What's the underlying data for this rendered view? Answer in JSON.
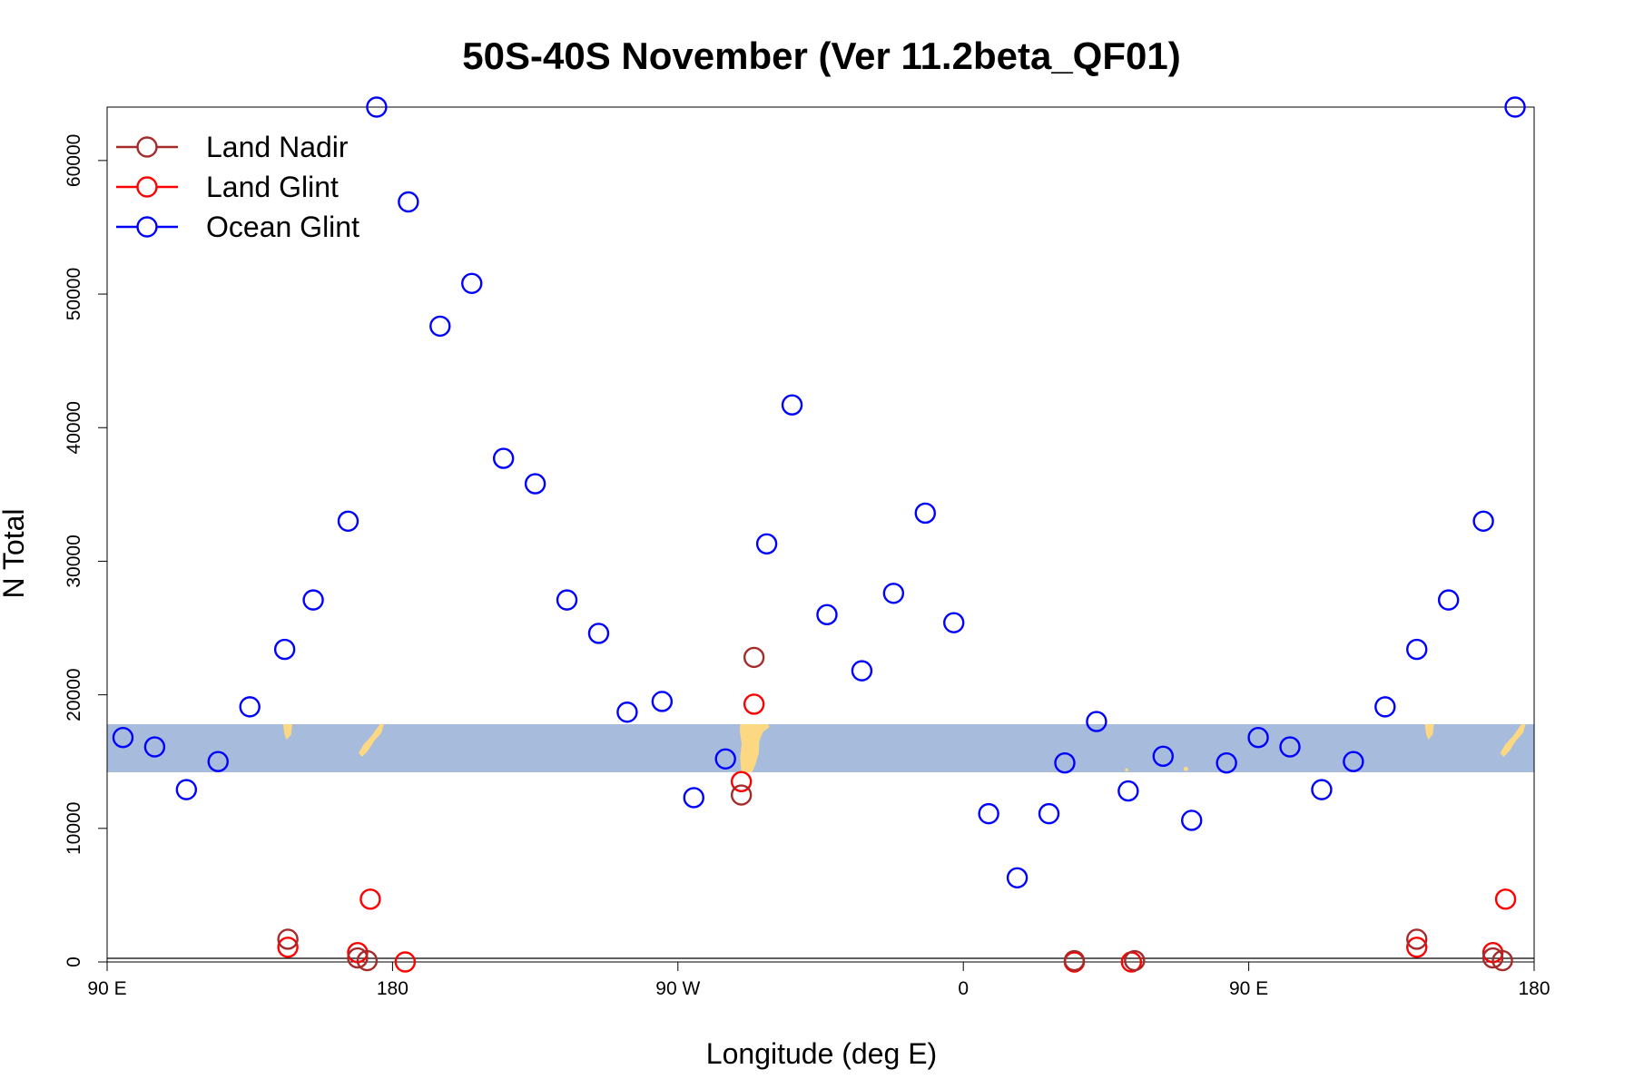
{
  "chart_data": {
    "type": "scatter",
    "title": "50S-40S November (Ver 11.2beta_QF01)",
    "xlabel": "Longitude (deg E)",
    "ylabel": "N Total",
    "xlim": [
      90,
      540
    ],
    "ylim": [
      0,
      64000
    ],
    "x_ticks": [
      {
        "value": 90,
        "label": "90 E"
      },
      {
        "value": 180,
        "label": "180"
      },
      {
        "value": 270,
        "label": "90 W"
      },
      {
        "value": 360,
        "label": "0"
      },
      {
        "value": 450,
        "label": "90 E"
      },
      {
        "value": 540,
        "label": "180"
      }
    ],
    "y_ticks": [
      {
        "value": 0,
        "label": "0"
      },
      {
        "value": 10000,
        "label": "10000"
      },
      {
        "value": 20000,
        "label": "20000"
      },
      {
        "value": 30000,
        "label": "30000"
      },
      {
        "value": 40000,
        "label": "40000"
      },
      {
        "value": 50000,
        "label": "50000"
      },
      {
        "value": 60000,
        "label": "60000"
      }
    ],
    "map_inset": {
      "ocean_color": "#a7bcdc",
      "land_color": "#fcd882",
      "y_range": [
        14200,
        17800
      ]
    },
    "legend_position": "top-left",
    "grid": false,
    "series": [
      {
        "name": "Land Nadir",
        "color": "#a52a2a",
        "points": [
          [
            147,
            1700
          ],
          [
            169,
            300
          ],
          [
            172,
            100
          ],
          [
            290,
            12500
          ],
          [
            294,
            22800
          ],
          [
            395,
            100
          ],
          [
            414,
            100
          ],
          [
            503,
            1700
          ],
          [
            527,
            300
          ],
          [
            530,
            100
          ]
        ]
      },
      {
        "name": "Land Glint",
        "color": "#ff0000",
        "points": [
          [
            147,
            1100
          ],
          [
            169,
            700
          ],
          [
            173,
            4700
          ],
          [
            184,
            0
          ],
          [
            290,
            13500
          ],
          [
            294,
            19300
          ],
          [
            395,
            0
          ],
          [
            413,
            0
          ],
          [
            503,
            1100
          ],
          [
            527,
            700
          ],
          [
            531,
            4700
          ]
        ]
      },
      {
        "name": "Ocean Glint",
        "color": "#0000ff",
        "points": [
          [
            95,
            16800
          ],
          [
            105,
            16100
          ],
          [
            115,
            12900
          ],
          [
            125,
            15000
          ],
          [
            135,
            19100
          ],
          [
            146,
            23400
          ],
          [
            155,
            27100
          ],
          [
            166,
            33000
          ],
          [
            175,
            64000
          ],
          [
            185,
            56900
          ],
          [
            195,
            47600
          ],
          [
            205,
            50800
          ],
          [
            215,
            37700
          ],
          [
            225,
            35800
          ],
          [
            235,
            27100
          ],
          [
            245,
            24600
          ],
          [
            254,
            18700
          ],
          [
            265,
            19500
          ],
          [
            275,
            12300
          ],
          [
            285,
            15200
          ],
          [
            298,
            31300
          ],
          [
            306,
            41700
          ],
          [
            317,
            26000
          ],
          [
            328,
            21800
          ],
          [
            338,
            27600
          ],
          [
            348,
            33600
          ],
          [
            357,
            25400
          ],
          [
            368,
            11100
          ],
          [
            377,
            6300
          ],
          [
            387,
            11100
          ],
          [
            392,
            14900
          ],
          [
            402,
            18000
          ],
          [
            412,
            12800
          ],
          [
            423,
            15400
          ],
          [
            432,
            10600
          ],
          [
            443,
            14900
          ],
          [
            453,
            16800
          ],
          [
            463,
            16100
          ],
          [
            473,
            12900
          ],
          [
            483,
            15000
          ],
          [
            493,
            19100
          ],
          [
            503,
            23400
          ],
          [
            513,
            27100
          ],
          [
            524,
            33000
          ],
          [
            534,
            64000
          ]
        ]
      }
    ]
  }
}
